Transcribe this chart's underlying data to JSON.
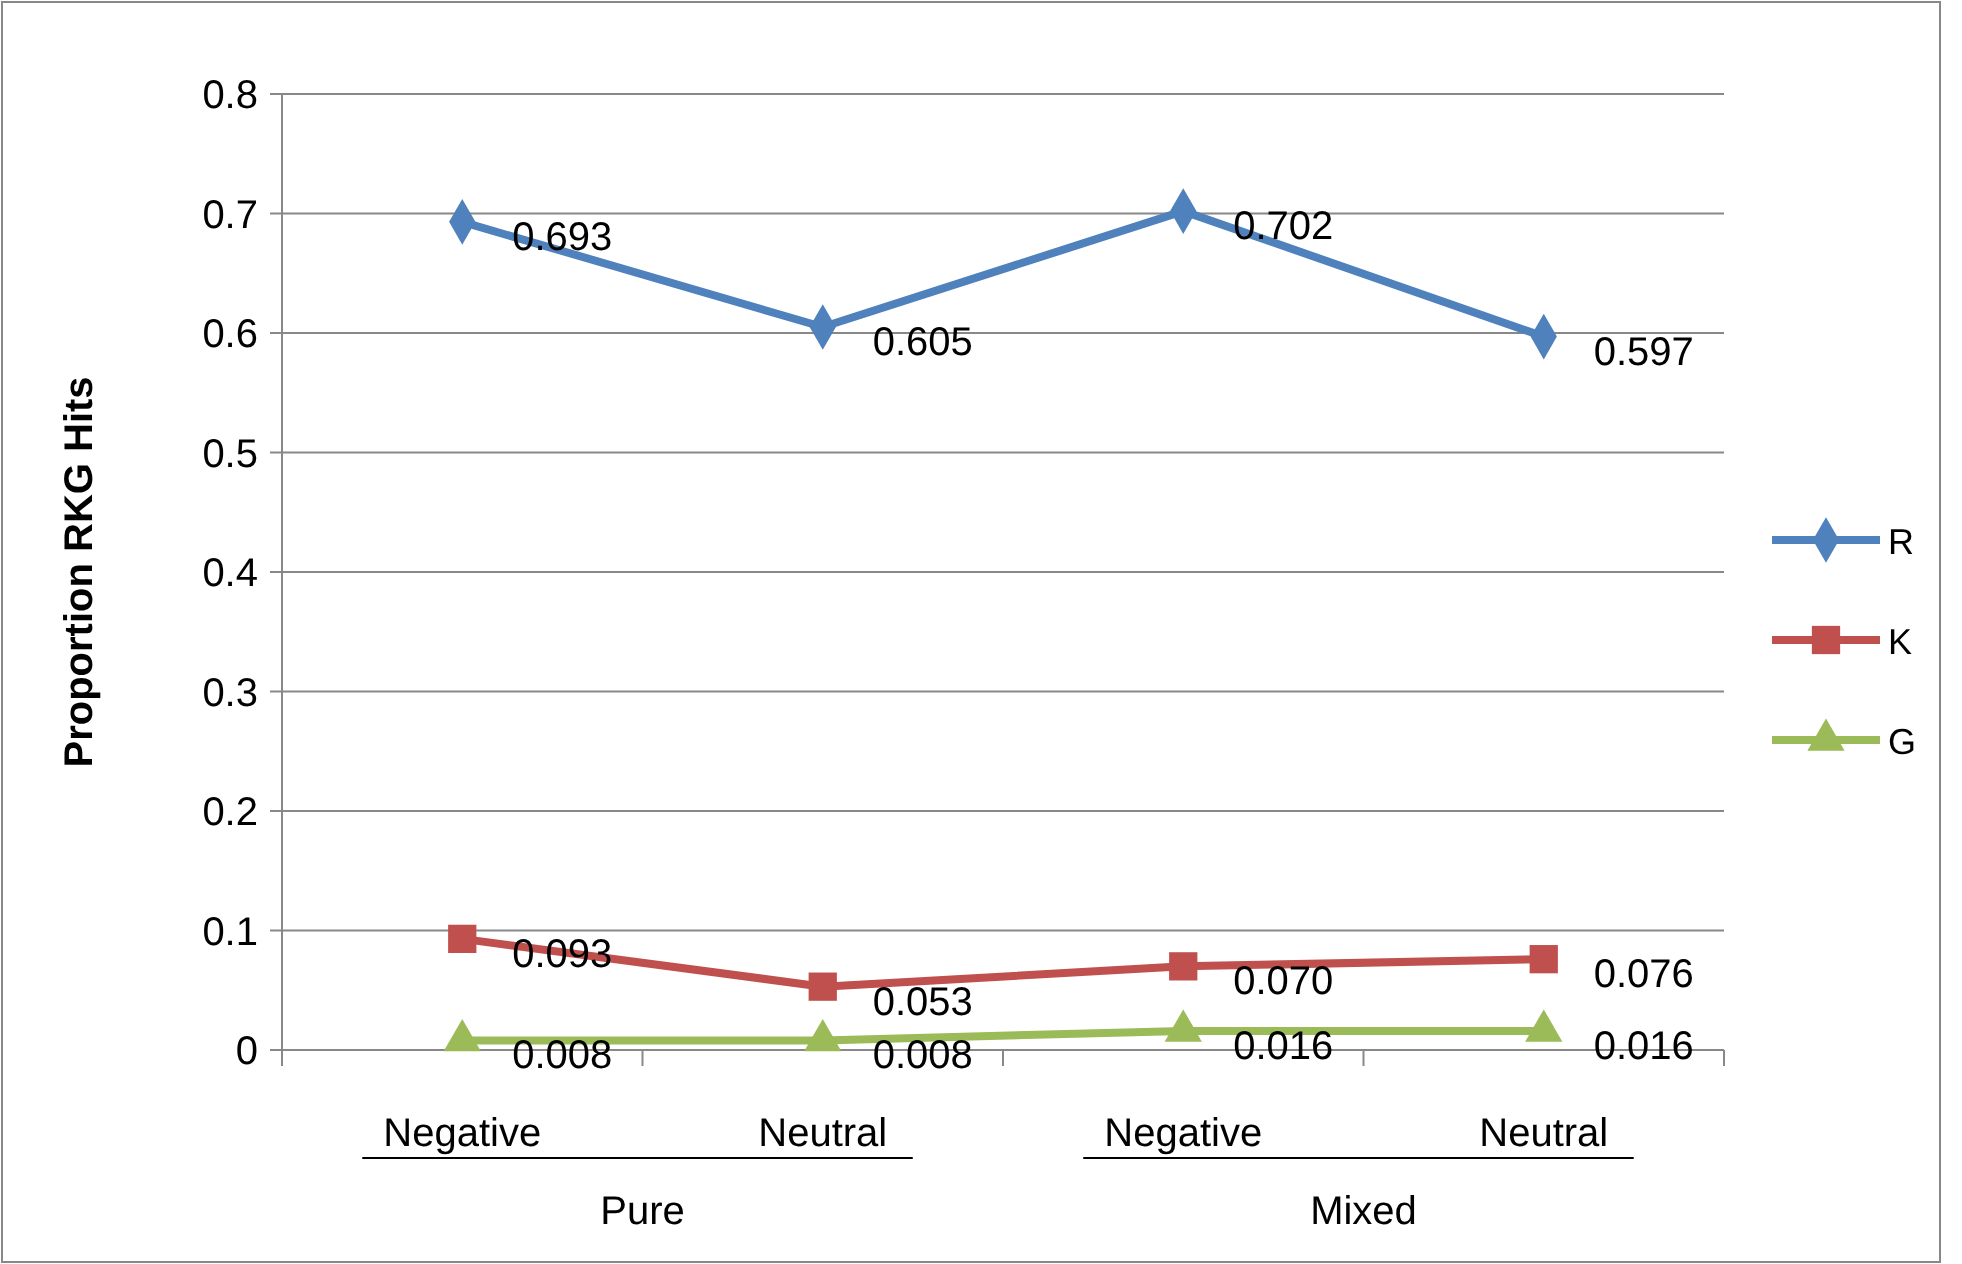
{
  "chart_data": {
    "type": "line",
    "ylabel": "Proportion RKG Hits",
    "categories": [
      "Negative",
      "Neutral",
      "Negative",
      "Neutral"
    ],
    "annotations": [
      "Pure",
      "Mixed"
    ],
    "series": [
      {
        "name": "R",
        "color": "#4f81bd",
        "marker": "diamond",
        "values": [
          0.693,
          0.605,
          0.702,
          0.597
        ],
        "value_labels": [
          "0.693",
          "0.605",
          "0.702",
          "0.597"
        ]
      },
      {
        "name": "K",
        "color": "#c0504d",
        "marker": "square",
        "values": [
          0.093,
          0.053,
          0.07,
          0.076
        ],
        "value_labels": [
          "0.093",
          "0.053",
          "0.070",
          "0.076"
        ]
      },
      {
        "name": "G",
        "color": "#9bbb59",
        "marker": "triangle",
        "values": [
          0.008,
          0.008,
          0.016,
          0.016
        ],
        "value_labels": [
          "0.008",
          "0.008",
          "0.016",
          "0.016"
        ]
      }
    ],
    "ylim": [
      0,
      0.8
    ],
    "yticks": [
      0,
      0.1,
      0.2,
      0.3,
      0.4,
      0.5,
      0.6,
      0.7,
      0.8
    ],
    "grid": "y",
    "legend": "right"
  }
}
